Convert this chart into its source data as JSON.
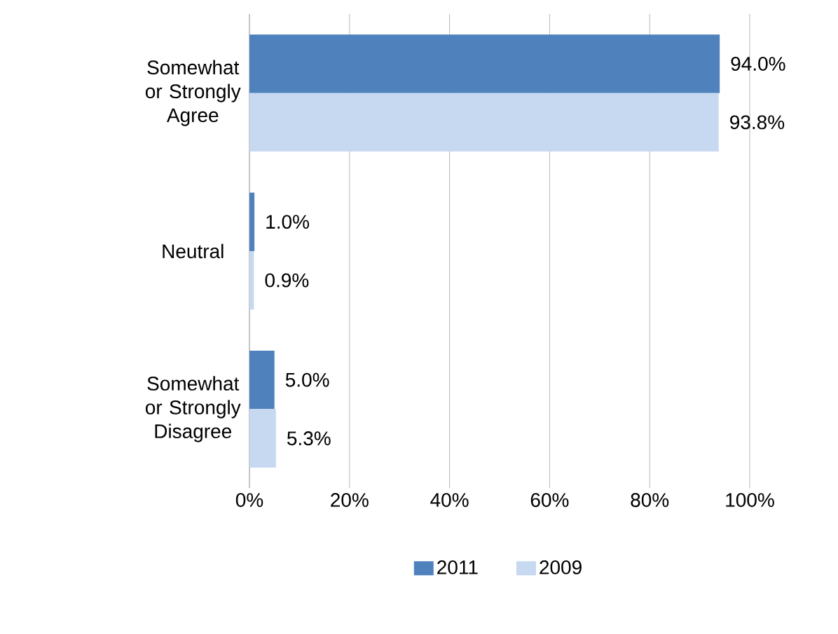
{
  "chart_data": {
    "type": "bar",
    "orientation": "horizontal",
    "categories": [
      "Somewhat or Strongly Agree",
      "Neutral",
      "Somewhat or Strongly Disagree"
    ],
    "series": [
      {
        "name": "2011",
        "color": "#4f81bd",
        "values": [
          94.0,
          1.0,
          5.0
        ],
        "value_labels": [
          "94.0%",
          "1.0%",
          "5.0%"
        ]
      },
      {
        "name": "2009",
        "color": "#c6d9f1",
        "values": [
          93.8,
          0.9,
          5.3
        ],
        "value_labels": [
          "93.8%",
          "0.9%",
          "5.3%"
        ]
      }
    ],
    "xlim": [
      0,
      100
    ],
    "xticks": [
      {
        "value": 0,
        "label": "0%"
      },
      {
        "value": 20,
        "label": "20%"
      },
      {
        "value": 40,
        "label": "40%"
      },
      {
        "value": 60,
        "label": "60%"
      },
      {
        "value": 80,
        "label": "80%"
      },
      {
        "value": 100,
        "label": "100%"
      }
    ],
    "grid": "x",
    "legend": "bottom"
  }
}
